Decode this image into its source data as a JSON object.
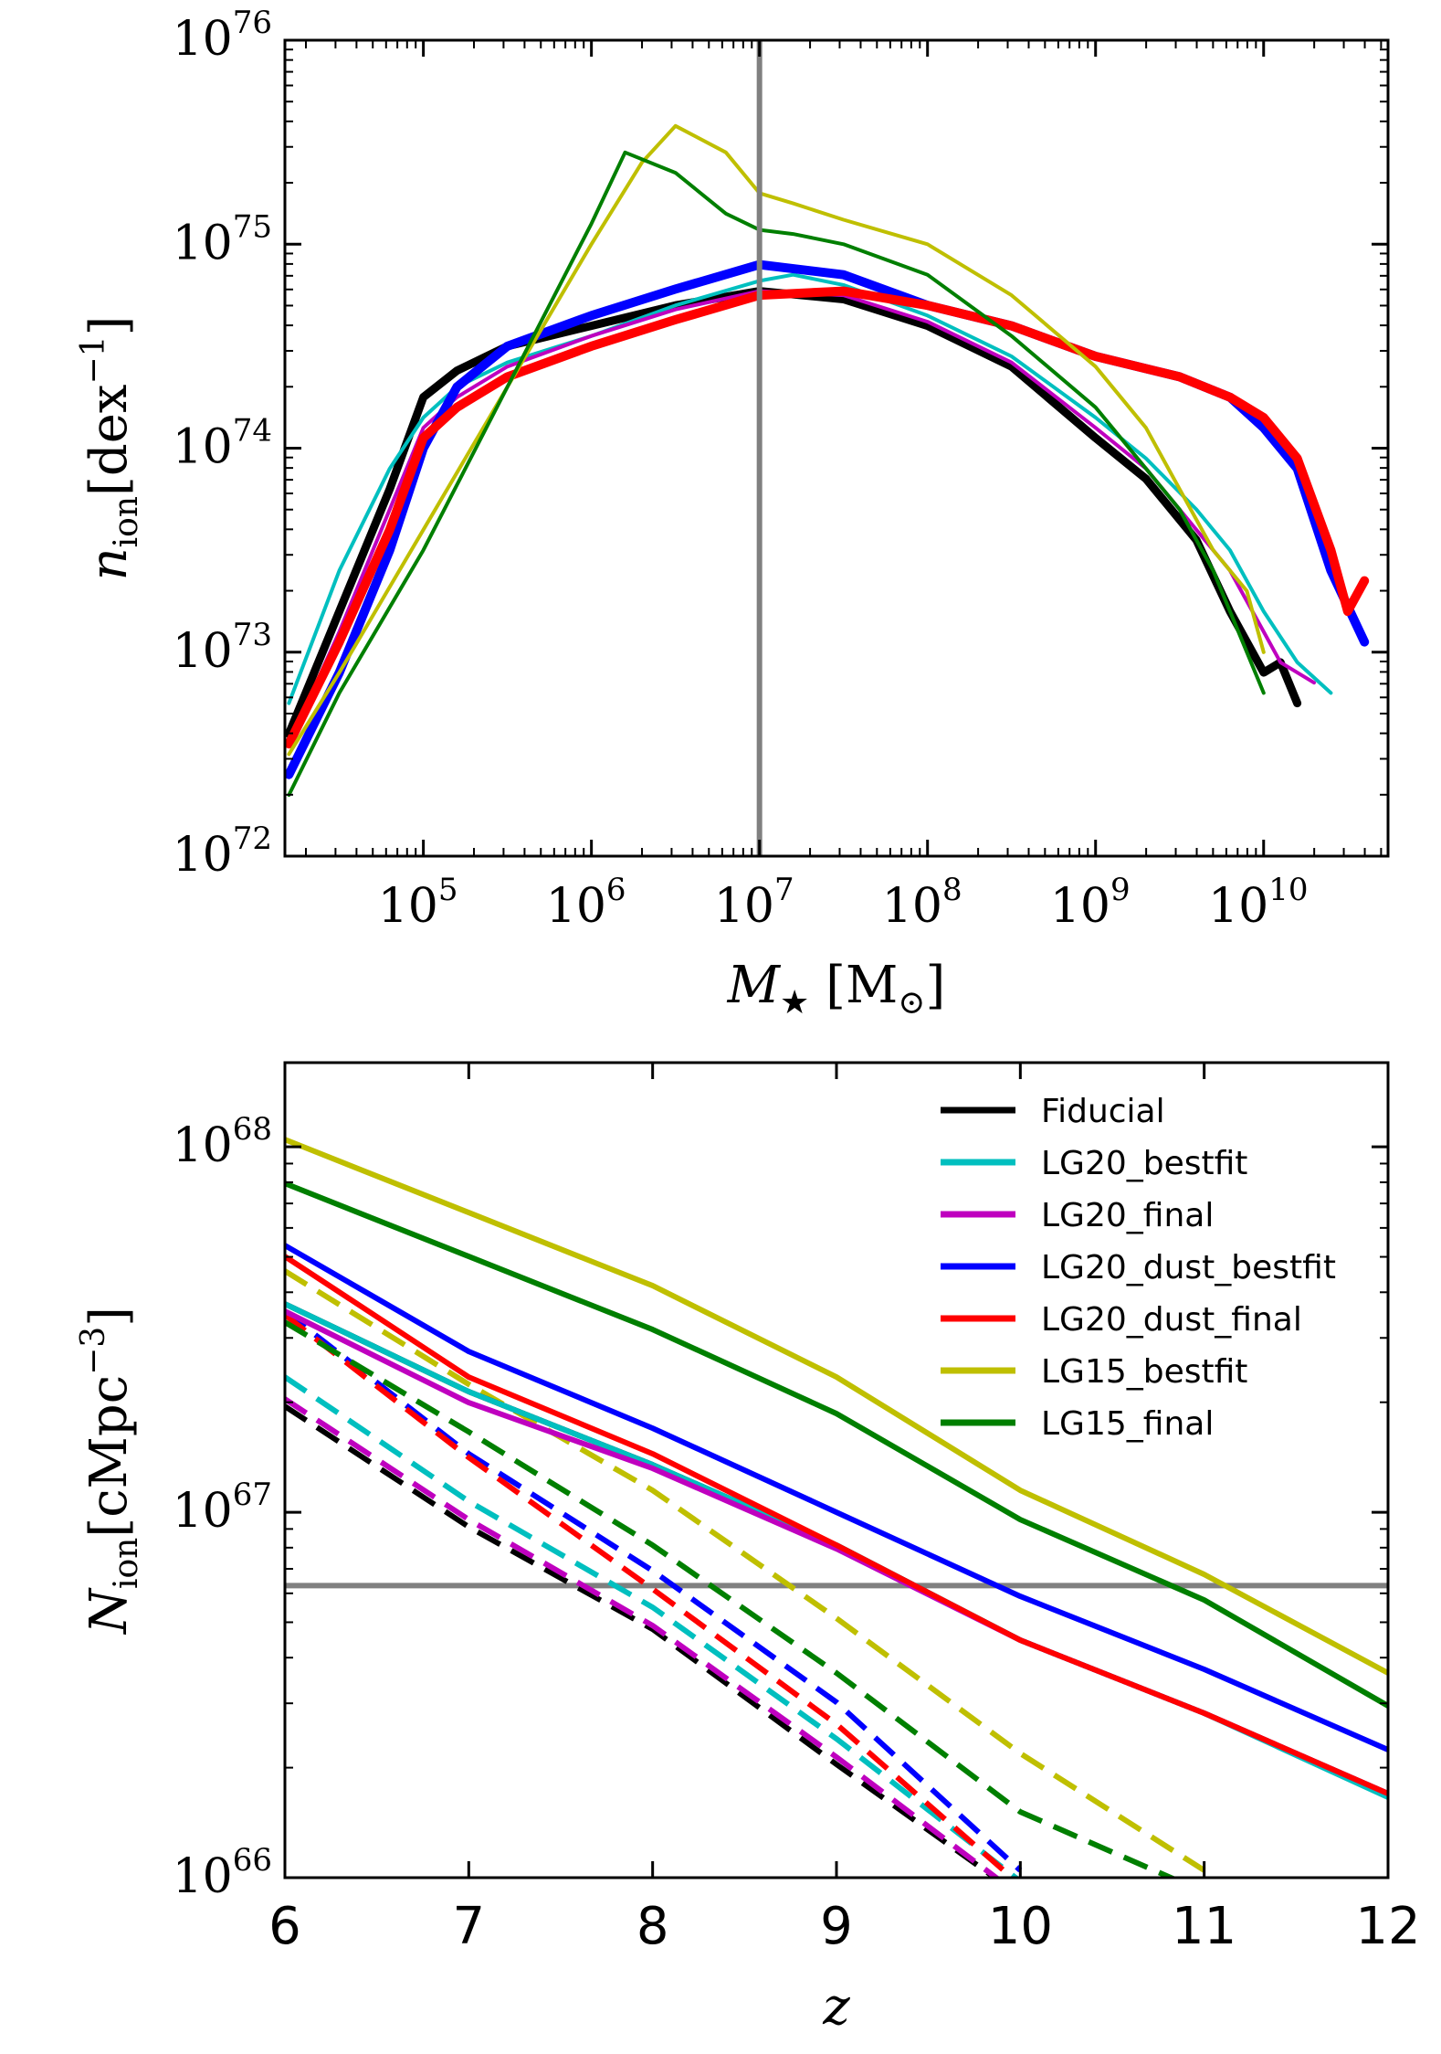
{
  "chart_data": [
    {
      "type": "line",
      "panel": "top",
      "xlabel": "M★ [M⊙]",
      "xlabel_main": "M",
      "xlabel_sub": "★",
      "xlabel_units": "[M",
      "xlabel_units_sub": "⊙",
      "xlabel_units_close": "]",
      "ylabel": "n_ion [dex^-1]",
      "ylabel_main": "n",
      "ylabel_sub": "ion",
      "ylabel_units": "[dex",
      "ylabel_units_sup": "−1",
      "ylabel_units_close": "]",
      "xscale": "log",
      "yscale": "log",
      "xlim": [
        15000.0,
        55000000000.0
      ],
      "ylim": [
        1e+72,
        1e+76
      ],
      "xticks": [
        {
          "base": "10",
          "exp": "5",
          "value": 100000.0
        },
        {
          "base": "10",
          "exp": "6",
          "value": 1000000.0
        },
        {
          "base": "10",
          "exp": "7",
          "value": 10000000.0
        },
        {
          "base": "10",
          "exp": "8",
          "value": 100000000.0
        },
        {
          "base": "10",
          "exp": "9",
          "value": 1000000000.0
        },
        {
          "base": "10",
          "exp": "10",
          "value": 10000000000.0
        }
      ],
      "yticks": [
        {
          "base": "10",
          "exp": "72",
          "value": 1e+72
        },
        {
          "base": "10",
          "exp": "73",
          "value": 1e+73
        },
        {
          "base": "10",
          "exp": "74",
          "value": 1e+74
        },
        {
          "base": "10",
          "exp": "75",
          "value": 1e+75
        },
        {
          "base": "10",
          "exp": "76",
          "value": 1e+76
        }
      ],
      "reference_vline": {
        "x": 10000000.0,
        "color": "#808080"
      },
      "series": [
        {
          "name": "Fiducial",
          "color": "#000000",
          "width": 9,
          "log_x": [
            4.2,
            4.5,
            4.8,
            5.0,
            5.2,
            5.5,
            6.0,
            6.5,
            7.0,
            7.5,
            8.0,
            8.5,
            9.0,
            9.3,
            9.6,
            9.8,
            10.0,
            10.1,
            10.2
          ],
          "log_y": [
            72.6,
            73.2,
            73.8,
            74.25,
            74.38,
            74.5,
            74.6,
            74.7,
            74.77,
            74.73,
            74.6,
            74.4,
            74.05,
            73.85,
            73.55,
            73.2,
            72.9,
            72.95,
            72.75
          ]
        },
        {
          "name": "LG20_bestfit",
          "color": "#00bfbf",
          "width": 4,
          "log_x": [
            4.2,
            4.5,
            4.8,
            5.0,
            5.2,
            5.5,
            6.0,
            6.5,
            7.0,
            7.2,
            7.5,
            8.0,
            8.5,
            9.0,
            9.3,
            9.6,
            9.8,
            10.0,
            10.2,
            10.4
          ],
          "log_y": [
            72.75,
            73.4,
            73.9,
            74.15,
            74.3,
            74.42,
            74.55,
            74.7,
            74.82,
            74.85,
            74.8,
            74.65,
            74.45,
            74.15,
            73.95,
            73.7,
            73.5,
            73.2,
            72.95,
            72.8
          ]
        },
        {
          "name": "LG20_final",
          "color": "#bf00bf",
          "width": 4,
          "log_x": [
            4.2,
            4.5,
            4.8,
            5.0,
            5.2,
            5.5,
            6.0,
            6.5,
            7.0,
            7.5,
            8.0,
            8.5,
            9.0,
            9.3,
            9.6,
            9.8,
            10.0,
            10.1,
            10.3
          ],
          "log_y": [
            72.55,
            73.1,
            73.7,
            74.1,
            74.25,
            74.4,
            74.55,
            74.68,
            74.77,
            74.75,
            74.62,
            74.42,
            74.1,
            73.9,
            73.6,
            73.4,
            73.1,
            72.95,
            72.85
          ]
        },
        {
          "name": "LG20_dust_bestfit",
          "color": "#0000ff",
          "width": 10,
          "log_x": [
            4.2,
            4.5,
            4.8,
            5.0,
            5.2,
            5.5,
            6.0,
            6.5,
            7.0,
            7.5,
            8.0,
            8.5,
            9.0,
            9.5,
            9.8,
            10.0,
            10.2,
            10.4,
            10.6
          ],
          "log_y": [
            72.4,
            72.9,
            73.5,
            74.0,
            74.3,
            74.5,
            74.65,
            74.78,
            74.9,
            74.85,
            74.7,
            74.6,
            74.45,
            74.35,
            74.25,
            74.1,
            73.9,
            73.4,
            73.05
          ]
        },
        {
          "name": "LG20_dust_final",
          "color": "#ff0000",
          "width": 10,
          "log_x": [
            4.2,
            4.5,
            4.8,
            5.0,
            5.2,
            5.5,
            6.0,
            6.5,
            7.0,
            7.5,
            8.0,
            8.5,
            9.0,
            9.5,
            9.8,
            10.0,
            10.2,
            10.4,
            10.5,
            10.6
          ],
          "log_y": [
            72.55,
            73.05,
            73.6,
            74.05,
            74.2,
            74.35,
            74.5,
            74.63,
            74.75,
            74.77,
            74.7,
            74.6,
            74.45,
            74.35,
            74.25,
            74.15,
            73.95,
            73.5,
            73.2,
            73.35
          ]
        },
        {
          "name": "LG15_bestfit",
          "color": "#bfbf00",
          "width": 4,
          "log_x": [
            4.2,
            4.5,
            5.0,
            5.5,
            6.0,
            6.3,
            6.5,
            6.8,
            7.0,
            7.2,
            7.5,
            8.0,
            8.5,
            9.0,
            9.3,
            9.5,
            9.7,
            9.9,
            10.0
          ],
          "log_y": [
            72.5,
            72.9,
            73.6,
            74.3,
            75.0,
            75.4,
            75.58,
            75.45,
            75.25,
            75.2,
            75.12,
            75.0,
            74.75,
            74.4,
            74.1,
            73.8,
            73.5,
            73.3,
            73.0
          ]
        },
        {
          "name": "LG15_final",
          "color": "#007f00",
          "width": 4,
          "log_x": [
            4.2,
            4.5,
            5.0,
            5.5,
            6.0,
            6.2,
            6.5,
            6.8,
            7.0,
            7.2,
            7.5,
            8.0,
            8.5,
            9.0,
            9.3,
            9.5,
            9.7,
            9.9,
            10.0
          ],
          "log_y": [
            72.3,
            72.8,
            73.5,
            74.3,
            75.1,
            75.45,
            75.35,
            75.15,
            75.07,
            75.05,
            75.0,
            74.85,
            74.55,
            74.2,
            73.9,
            73.7,
            73.4,
            73.0,
            72.8
          ]
        }
      ]
    },
    {
      "type": "line",
      "panel": "bottom",
      "xlabel": "z",
      "ylabel": "N_ion [cMpc^-3]",
      "ylabel_main": "N",
      "ylabel_sub": "ion",
      "ylabel_units": "[cMpc",
      "ylabel_units_sup": "−3",
      "ylabel_units_close": "]",
      "xlim": [
        6,
        12
      ],
      "ylim": [
        1e+66,
        1.7e+68
      ],
      "yscale": "log",
      "xticks": [
        {
          "label": "6",
          "value": 6
        },
        {
          "label": "7",
          "value": 7
        },
        {
          "label": "8",
          "value": 8
        },
        {
          "label": "9",
          "value": 9
        },
        {
          "label": "10",
          "value": 10
        },
        {
          "label": "11",
          "value": 11
        },
        {
          "label": "12",
          "value": 12
        }
      ],
      "yticks": [
        {
          "base": "10",
          "exp": "66",
          "value": 1e+66
        },
        {
          "base": "10",
          "exp": "67",
          "value": 1e+67
        },
        {
          "base": "10",
          "exp": "68",
          "value": 1e+68
        }
      ],
      "reference_hline": {
        "y": 6.3e+66,
        "color": "#808080"
      },
      "legend_position": "top-right",
      "x": [
        6,
        7,
        8,
        9,
        10,
        11,
        12
      ],
      "series": [
        {
          "name": "Fiducial",
          "color": "#000000",
          "solid_log_y": [
            67.57,
            67.33,
            67.13,
            66.91,
            66.65,
            66.45,
            66.23
          ],
          "dashed_log_y": [
            67.29,
            66.96,
            66.68,
            66.31,
            65.95
          ]
        },
        {
          "name": "LG20_bestfit",
          "color": "#00bfbf",
          "solid_log_y": [
            67.57,
            67.33,
            67.13,
            66.91,
            66.65,
            66.45,
            66.22
          ],
          "dashed_log_y": [
            67.37,
            67.03,
            66.74,
            66.38,
            65.99
          ]
        },
        {
          "name": "LG20_final",
          "color": "#bf00bf",
          "solid_log_y": [
            67.55,
            67.3,
            67.12,
            66.9,
            66.65,
            66.45,
            66.23
          ],
          "dashed_log_y": [
            67.31,
            66.98,
            66.69,
            66.33,
            65.95
          ]
        },
        {
          "name": "LG20_dust_bestfit",
          "color": "#0000ff",
          "solid_log_y": [
            67.73,
            67.44,
            67.23,
            67.0,
            66.77,
            66.57,
            66.35
          ],
          "dashed_log_y": [
            67.55,
            67.16,
            66.84,
            66.48,
            66.02
          ]
        },
        {
          "name": "LG20_dust_final",
          "color": "#ff0000",
          "solid_log_y": [
            67.7,
            67.37,
            67.16,
            66.91,
            66.65,
            66.45,
            66.23
          ],
          "dashed_log_y": [
            67.54,
            67.15,
            66.79,
            66.42,
            65.98
          ]
        },
        {
          "name": "LG15_bestfit",
          "color": "#bfbf00",
          "solid_log_y": [
            68.02,
            67.82,
            67.62,
            67.37,
            67.06,
            66.83,
            66.56
          ],
          "dashed_log_y": [
            67.66,
            67.35,
            67.06,
            66.71,
            66.34,
            66.02
          ]
        },
        {
          "name": "LG15_final",
          "color": "#007f00",
          "solid_log_y": [
            67.9,
            67.7,
            67.5,
            67.27,
            66.98,
            66.76,
            66.47
          ],
          "dashed_log_y": [
            67.52,
            67.22,
            66.91,
            66.56,
            66.18,
            65.96
          ]
        }
      ]
    }
  ]
}
